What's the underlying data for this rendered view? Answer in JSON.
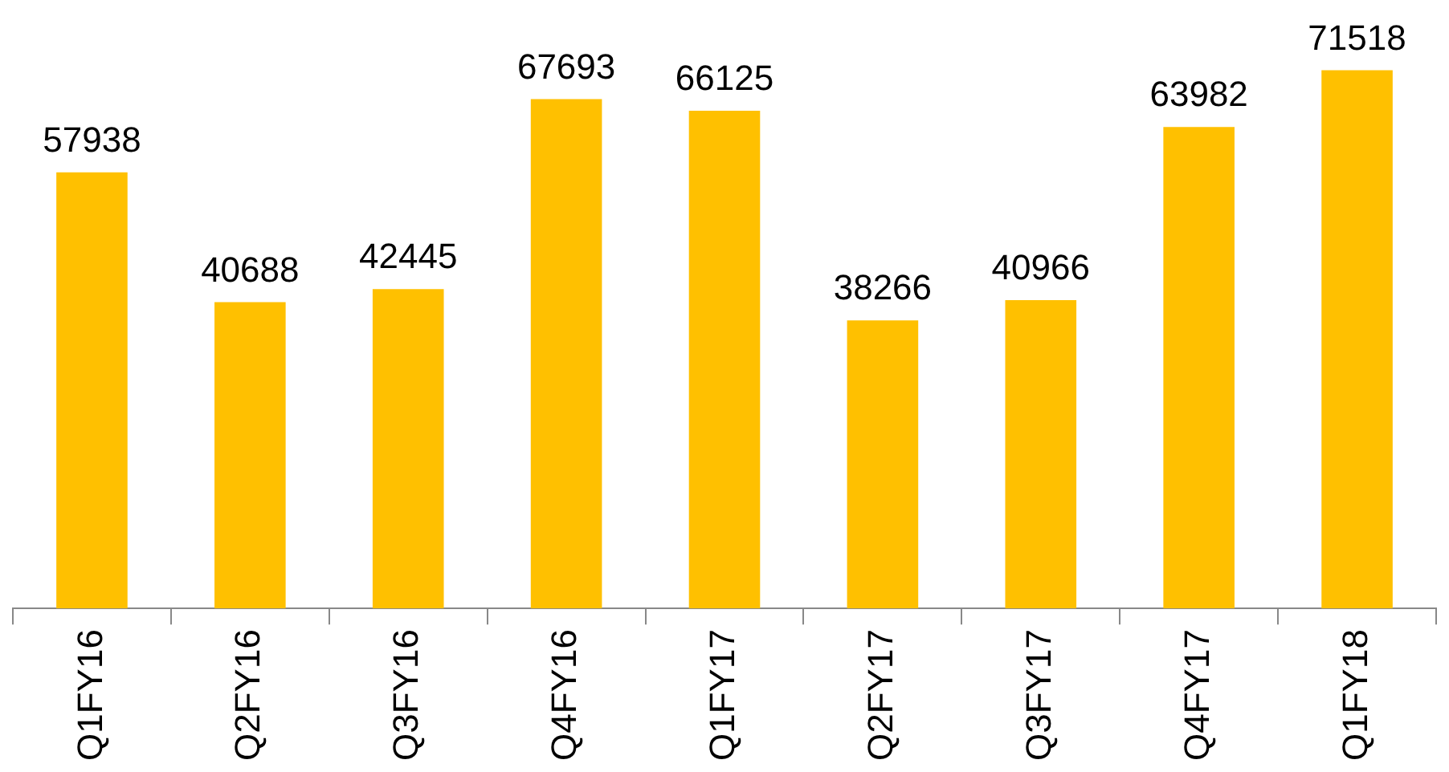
{
  "chart_data": {
    "type": "bar",
    "categories": [
      "Q1FY16",
      "Q2FY16",
      "Q3FY16",
      "Q4FY16",
      "Q1FY17",
      "Q2FY17",
      "Q3FY17",
      "Q4FY17",
      "Q1FY18"
    ],
    "values": [
      57938,
      40688,
      42445,
      67693,
      66125,
      38266,
      40966,
      63982,
      71518
    ],
    "color": "#ffc000",
    "data_labels": true,
    "tick_labels": "x"
  }
}
